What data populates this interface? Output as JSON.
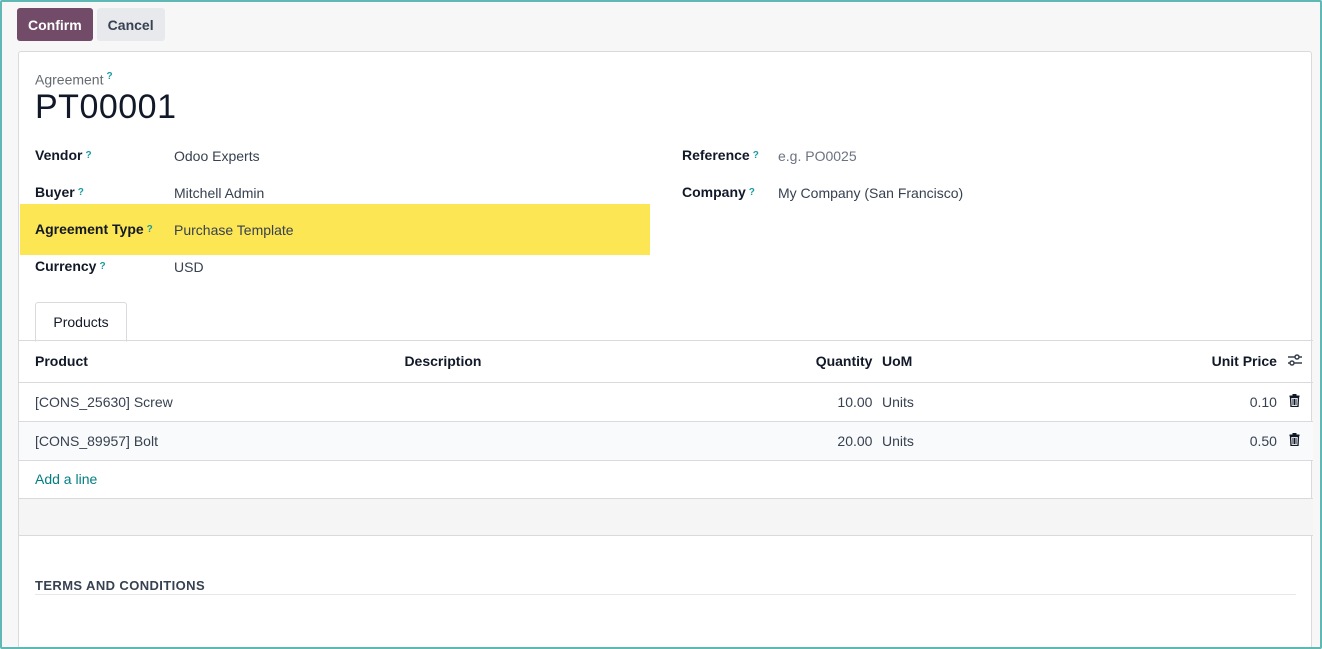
{
  "controlbar": {
    "confirm_label": "Confirm",
    "cancel_label": "Cancel"
  },
  "form": {
    "title_label": "Agreement",
    "help_mark": "?",
    "name": "PT00001",
    "left_fields": [
      {
        "label": "Vendor",
        "value": "Odoo Experts"
      },
      {
        "label": "Buyer",
        "value": "Mitchell Admin"
      },
      {
        "label": "Agreement Type",
        "value": "Purchase Template"
      },
      {
        "label": "Currency",
        "value": "USD"
      }
    ],
    "right_fields": [
      {
        "label": "Reference",
        "placeholder": "e.g. PO0025"
      },
      {
        "label": "Company",
        "value": "My Company (San Francisco)"
      }
    ],
    "highlight_color": "#fce654"
  },
  "tabs": [
    {
      "label": "Products",
      "active": true
    }
  ],
  "lines": {
    "columns": {
      "product": "Product",
      "description": "Description",
      "quantity": "Quantity",
      "uom": "UoM",
      "unit_price": "Unit Price"
    },
    "rows": [
      {
        "product": "[CONS_25630] Screw",
        "description": "",
        "quantity": "10.00",
        "uom": "Units",
        "unit_price": "0.10"
      },
      {
        "product": "[CONS_89957] Bolt",
        "description": "",
        "quantity": "20.00",
        "uom": "Units",
        "unit_price": "0.50"
      }
    ],
    "add_line_label": "Add a line"
  },
  "terms": {
    "title": "TERMS AND CONDITIONS"
  },
  "colors": {
    "primary": "#714b67",
    "link": "#017e84",
    "help": "#1a9ba2"
  }
}
